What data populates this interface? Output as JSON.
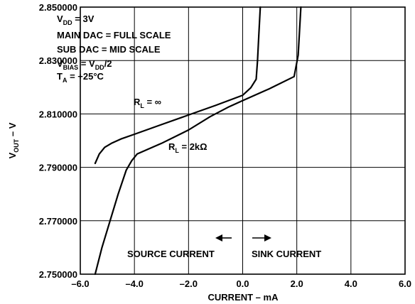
{
  "chart_data": {
    "type": "line",
    "title": "",
    "xlabel": "CURRENT – mA",
    "ylabel": "V",
    "ylabel_main": "V",
    "ylabel_sub": "OUT",
    "ylabel_unit": "V",
    "xlim": [
      -6.0,
      6.0
    ],
    "ylim": [
      2.75,
      2.85
    ],
    "x_ticks": [
      -6.0,
      -4.0,
      -2.0,
      0.0,
      2.0,
      4.0,
      6.0
    ],
    "x_tick_labels": [
      "–6.0",
      "–4.0",
      "–2.0",
      "0.0",
      "2.0",
      "4.0",
      "6.0"
    ],
    "y_ticks": [
      2.75,
      2.77,
      2.79,
      2.81,
      2.83,
      2.85
    ],
    "y_tick_labels": [
      "2.750000",
      "2.770000",
      "2.790000",
      "2.810000",
      "2.830000",
      "2.850000"
    ],
    "grid": true,
    "conditions": [
      {
        "main": "V",
        "sub": "DD",
        "rest": " = 3V"
      },
      {
        "main": "MAIN DAC = FULL SCALE",
        "sub": "",
        "rest": ""
      },
      {
        "main": "SUB DAC = MID SCALE",
        "sub": "",
        "rest": ""
      },
      {
        "main": "V",
        "sub": "BIAS",
        "rest": " = V",
        "sub2": "DD",
        "rest2": "/2"
      },
      {
        "main": "T",
        "sub": "A",
        "rest": " = +25°C"
      }
    ],
    "annotations": {
      "source": "SOURCE CURRENT",
      "sink": "SINK CURRENT",
      "rl_inf_main": "R",
      "rl_inf_sub": "L",
      "rl_inf_rest": " = ∞",
      "rl_2k_main": "R",
      "rl_2k_sub": "L",
      "rl_2k_rest": " = 2kΩ"
    },
    "series": [
      {
        "label": "R_L = ∞",
        "x": [
          -5.45,
          -5.3,
          -5.1,
          -4.85,
          -4.5,
          -4.0,
          -3.0,
          -2.0,
          -1.0,
          0.0,
          0.3,
          0.5,
          0.55,
          0.6,
          0.65
        ],
        "y": [
          2.7915,
          2.795,
          2.7975,
          2.799,
          2.8006,
          2.8024,
          2.806,
          2.8096,
          2.8132,
          2.817,
          2.8198,
          2.823,
          2.83,
          2.84,
          2.85
        ]
      },
      {
        "label": "R_L = 2kΩ",
        "x": [
          -5.45,
          -5.2,
          -4.9,
          -4.6,
          -4.3,
          -4.1,
          -3.9,
          -3.0,
          -2.0,
          -1.2,
          -0.5,
          0.0,
          1.0,
          1.9,
          2.05,
          2.1,
          2.15
        ],
        "y": [
          2.75,
          2.76,
          2.77,
          2.78,
          2.789,
          2.7925,
          2.795,
          2.799,
          2.804,
          2.809,
          2.8127,
          2.815,
          2.8195,
          2.824,
          2.832,
          2.841,
          2.85
        ]
      }
    ]
  }
}
